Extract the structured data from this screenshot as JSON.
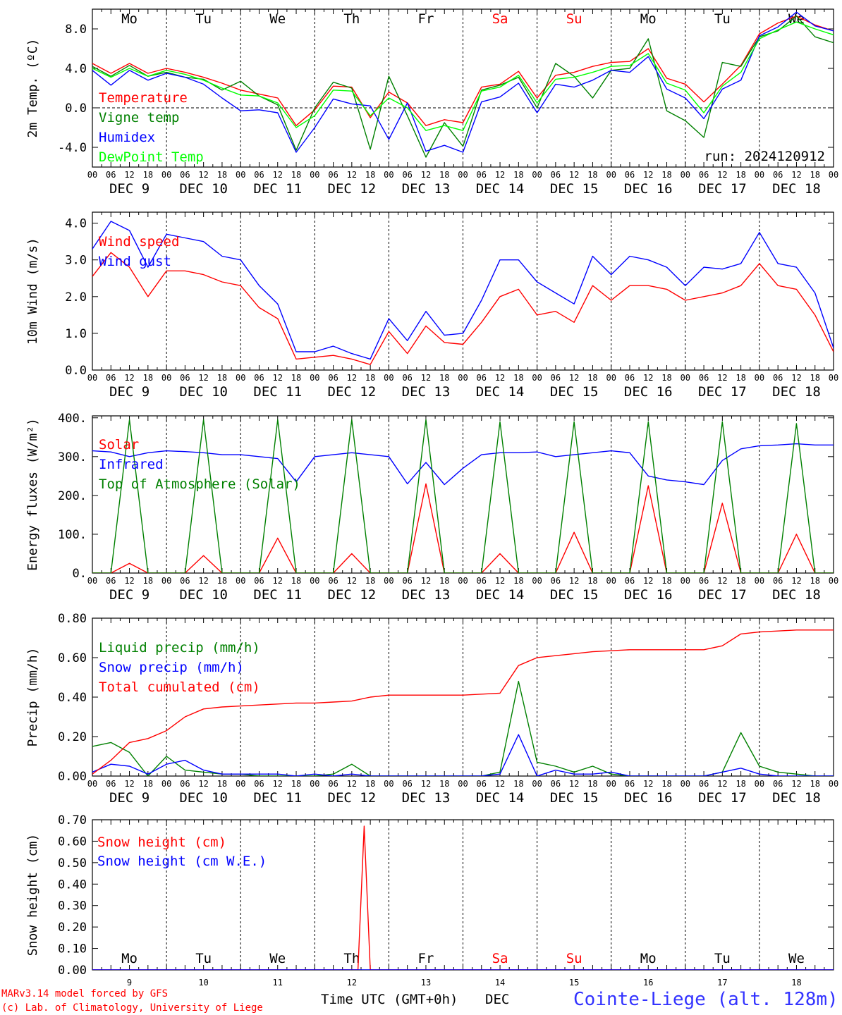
{
  "station": "Cointe-Liege (alt. 128m)",
  "footer": {
    "model": "MARv3.14 model forced by GFS",
    "copyright": "(c) Lab. of Climatology, University of Liege",
    "xlabel": "Time UTC (GMT+0h)",
    "month": "DEC"
  },
  "run": "run: 2024120912",
  "days": {
    "weekday": [
      "Mo",
      "Tu",
      "We",
      "Th",
      "Fr",
      "Sa",
      "Su",
      "Mo",
      "Tu",
      "We"
    ],
    "weekend_color": "#ff0000",
    "dates": [
      "DEC  9",
      "DEC 10",
      "DEC 11",
      "DEC 12",
      "DEC 13",
      "DEC 14",
      "DEC 15",
      "DEC 16",
      "DEC 17",
      "DEC 18"
    ],
    "numbers": [
      "9",
      "10",
      "11",
      "12",
      "13",
      "14",
      "15",
      "16",
      "17",
      "18"
    ],
    "hour_ticks": [
      "00",
      "06",
      "12",
      "18"
    ]
  },
  "chart_data": [
    {
      "type": "line",
      "ylabel": "2m Temp. (ºC)",
      "ylim": [
        -6,
        10
      ],
      "yticks": [
        "-4.0",
        "0.0",
        "4.0",
        "8.0"
      ],
      "x_hours": [
        0,
        6,
        12,
        18,
        24,
        30,
        36,
        42,
        48,
        54,
        60,
        66,
        72,
        78,
        84,
        90,
        96,
        102,
        108,
        114,
        120,
        126,
        132,
        138,
        144,
        150,
        156,
        162,
        168,
        174,
        180,
        186,
        192,
        198,
        204,
        210,
        216,
        222,
        228,
        234,
        240
      ],
      "series": [
        {
          "name": "Temperature",
          "color": "#ff0000",
          "values": [
            4.5,
            3.5,
            4.5,
            3.5,
            4.0,
            3.6,
            3.1,
            2.5,
            1.8,
            1.4,
            1.0,
            -1.8,
            -0.2,
            2.2,
            2.1,
            -1.0,
            1.6,
            0.5,
            -1.8,
            -1.2,
            -1.5,
            2.1,
            2.4,
            3.7,
            1.0,
            3.3,
            3.6,
            4.2,
            4.6,
            4.7,
            6.0,
            3.0,
            2.4,
            0.6,
            2.4,
            4.3,
            7.5,
            8.6,
            9.3,
            8.4,
            7.8
          ]
        },
        {
          "name": "Vigne temp",
          "color": "#008000",
          "values": [
            4.2,
            3.2,
            4.3,
            3.2,
            3.6,
            3.1,
            2.9,
            1.8,
            2.7,
            1.2,
            0.3,
            -4.3,
            0.0,
            2.6,
            2.0,
            -4.2,
            3.2,
            -0.8,
            -5.0,
            -1.5,
            -3.9,
            1.8,
            2.3,
            3.1,
            0.0,
            4.5,
            3.2,
            1.0,
            3.8,
            4.0,
            7.0,
            -0.3,
            -1.3,
            -3.0,
            4.6,
            4.2,
            7.2,
            7.8,
            9.3,
            7.2,
            6.6
          ]
        },
        {
          "name": "Humidex",
          "color": "#0000ff",
          "values": [
            3.8,
            2.3,
            3.8,
            2.8,
            3.5,
            3.1,
            2.4,
            1.0,
            -0.3,
            -0.2,
            -0.5,
            -4.5,
            -2.0,
            0.9,
            0.4,
            0.2,
            -3.2,
            0.5,
            -4.4,
            -3.8,
            -4.5,
            0.6,
            1.1,
            2.5,
            -0.5,
            2.4,
            2.1,
            2.8,
            3.8,
            3.6,
            5.2,
            1.9,
            1.0,
            -1.1,
            1.9,
            2.8,
            7.3,
            8.2,
            9.7,
            8.3,
            7.8
          ]
        },
        {
          "name": "DewPoint Temp",
          "color": "#00ff00",
          "values": [
            4.0,
            3.1,
            4.0,
            3.2,
            3.8,
            3.4,
            2.8,
            2.0,
            1.3,
            1.2,
            0.5,
            -2.0,
            -0.8,
            1.8,
            1.7,
            -0.8,
            1.0,
            0.0,
            -2.3,
            -1.8,
            -2.3,
            1.7,
            2.1,
            3.3,
            0.5,
            2.9,
            3.1,
            3.6,
            4.2,
            4.3,
            5.5,
            2.5,
            1.8,
            -0.5,
            2.2,
            3.6,
            7.0,
            7.9,
            8.7,
            8.0,
            7.4
          ]
        }
      ]
    },
    {
      "type": "line",
      "ylabel": "10m Wind (m/s)",
      "ylim": [
        0,
        4.3
      ],
      "yticks": [
        "0.0",
        "1.0",
        "2.0",
        "3.0",
        "4.0"
      ],
      "x_hours": [
        0,
        6,
        12,
        18,
        24,
        30,
        36,
        42,
        48,
        54,
        60,
        66,
        72,
        78,
        84,
        90,
        96,
        102,
        108,
        114,
        120,
        126,
        132,
        138,
        144,
        150,
        156,
        162,
        168,
        174,
        180,
        186,
        192,
        198,
        204,
        210,
        216,
        222,
        228,
        234,
        240
      ],
      "series": [
        {
          "name": "Wind speed",
          "color": "#ff0000",
          "values": [
            2.55,
            3.2,
            2.8,
            2.0,
            2.7,
            2.7,
            2.6,
            2.4,
            2.3,
            1.7,
            1.4,
            0.3,
            0.35,
            0.4,
            0.3,
            0.15,
            1.05,
            0.45,
            1.2,
            0.75,
            0.7,
            1.3,
            2.0,
            2.2,
            1.5,
            1.6,
            1.3,
            2.3,
            1.9,
            2.3,
            2.3,
            2.2,
            1.9,
            2.0,
            2.1,
            2.3,
            2.9,
            2.3,
            2.2,
            1.5,
            0.5
          ]
        },
        {
          "name": "Wind gust",
          "color": "#0000ff",
          "values": [
            3.3,
            4.05,
            3.8,
            2.8,
            3.7,
            3.6,
            3.5,
            3.1,
            3.0,
            2.3,
            1.8,
            0.5,
            0.5,
            0.65,
            0.45,
            0.3,
            1.4,
            0.8,
            1.6,
            0.95,
            1.0,
            1.9,
            3.0,
            3.0,
            2.4,
            2.1,
            1.8,
            3.1,
            2.6,
            3.1,
            3.0,
            2.8,
            2.3,
            2.8,
            2.75,
            2.9,
            3.75,
            2.9,
            2.8,
            2.1,
            0.6
          ]
        }
      ]
    },
    {
      "type": "line",
      "ylabel": "Energy fluxes (W/m²)",
      "ylim": [
        0,
        405
      ],
      "yticks": [
        "0.",
        "100.",
        "200.",
        "300.",
        "400."
      ],
      "x_hours": [
        0,
        6,
        12,
        18,
        24,
        30,
        36,
        42,
        48,
        54,
        60,
        66,
        72,
        78,
        84,
        90,
        96,
        102,
        108,
        114,
        120,
        126,
        132,
        138,
        144,
        150,
        156,
        162,
        168,
        174,
        180,
        186,
        192,
        198,
        204,
        210,
        216,
        222,
        228,
        234,
        240
      ],
      "series": [
        {
          "name": "Solar",
          "color": "#ff0000",
          "values": [
            0,
            0,
            25,
            0,
            0,
            0,
            45,
            0,
            0,
            0,
            90,
            0,
            0,
            0,
            50,
            0,
            0,
            0,
            230,
            0,
            0,
            0,
            50,
            0,
            0,
            0,
            105,
            0,
            0,
            0,
            225,
            0,
            0,
            0,
            180,
            0,
            0,
            0,
            100,
            0,
            0
          ]
        },
        {
          "name": "Infrared",
          "color": "#0000ff",
          "values": [
            315,
            312,
            300,
            310,
            315,
            313,
            310,
            305,
            305,
            300,
            295,
            235,
            300,
            305,
            310,
            305,
            300,
            230,
            285,
            228,
            270,
            305,
            310,
            310,
            312,
            300,
            305,
            310,
            315,
            310,
            250,
            240,
            235,
            228,
            290,
            320,
            328,
            330,
            333,
            330,
            330
          ]
        },
        {
          "name": "Top of Atmosphere (Solar)",
          "color": "#008000",
          "values": [
            0,
            0,
            395,
            0,
            0,
            0,
            395,
            0,
            0,
            0,
            395,
            0,
            0,
            0,
            395,
            0,
            0,
            0,
            395,
            0,
            0,
            0,
            390,
            0,
            0,
            0,
            390,
            0,
            0,
            0,
            390,
            0,
            0,
            0,
            390,
            0,
            0,
            0,
            385,
            0,
            0
          ]
        }
      ]
    },
    {
      "type": "line",
      "ylabel": "Precip (mm/h)",
      "ylim": [
        0,
        0.8
      ],
      "yticks": [
        "0.00",
        "0.20",
        "0.40",
        "0.60",
        "0.80"
      ],
      "x_hours": [
        0,
        6,
        12,
        18,
        24,
        30,
        36,
        42,
        48,
        54,
        60,
        66,
        72,
        78,
        84,
        90,
        96,
        102,
        108,
        114,
        120,
        126,
        132,
        138,
        144,
        150,
        156,
        162,
        168,
        174,
        180,
        186,
        192,
        198,
        204,
        210,
        216,
        222,
        228,
        234,
        240
      ],
      "series": [
        {
          "name": "Liquid precip (mm/h)",
          "color": "#008000",
          "values": [
            0.15,
            0.17,
            0.12,
            0.0,
            0.1,
            0.03,
            0.02,
            0.01,
            0.01,
            0.0,
            0.0,
            0.0,
            0.0,
            0.01,
            0.06,
            0.0,
            0.0,
            0.0,
            0.0,
            0.0,
            0.0,
            0.0,
            0.02,
            0.48,
            0.07,
            0.05,
            0.02,
            0.05,
            0.01,
            0.0,
            0.0,
            0.0,
            0.0,
            0.0,
            0.02,
            0.22,
            0.05,
            0.02,
            0.01,
            0.0,
            0.0
          ]
        },
        {
          "name": "Snow precip (mm/h)",
          "color": "#0000ff",
          "values": [
            0.02,
            0.06,
            0.05,
            0.01,
            0.06,
            0.08,
            0.03,
            0.01,
            0.01,
            0.01,
            0.01,
            0.0,
            0.01,
            0.0,
            0.01,
            0.0,
            0.0,
            0.0,
            0.0,
            0.0,
            0.0,
            0.0,
            0.01,
            0.21,
            0.0,
            0.03,
            0.01,
            0.01,
            0.02,
            0.0,
            0.0,
            0.0,
            0.0,
            0.0,
            0.02,
            0.04,
            0.01,
            0.0,
            0.0,
            0.0,
            0.0
          ]
        },
        {
          "name": "Total cumulated (cm)",
          "color": "#ff0000",
          "values": [
            0.01,
            0.08,
            0.17,
            0.19,
            0.23,
            0.3,
            0.34,
            0.35,
            0.355,
            0.36,
            0.365,
            0.37,
            0.37,
            0.375,
            0.38,
            0.4,
            0.41,
            0.41,
            0.41,
            0.41,
            0.41,
            0.415,
            0.42,
            0.56,
            0.6,
            0.61,
            0.62,
            0.63,
            0.635,
            0.64,
            0.64,
            0.64,
            0.64,
            0.64,
            0.66,
            0.72,
            0.73,
            0.735,
            0.74,
            0.74,
            0.74
          ]
        }
      ]
    },
    {
      "type": "line",
      "ylabel": "Snow height (cm)",
      "ylim": [
        0,
        0.7
      ],
      "yticks": [
        "0.00",
        "0.10",
        "0.20",
        "0.30",
        "0.40",
        "0.50",
        "0.60",
        "0.70"
      ],
      "x_hours": [
        0,
        86,
        88,
        90,
        240
      ],
      "series": [
        {
          "name": "Snow height (cm)",
          "color": "#ff0000",
          "values": [
            0,
            0,
            0.67,
            0,
            0
          ]
        },
        {
          "name": "Snow height (cm W.E.)",
          "color": "#0000ff",
          "values": [
            0,
            0,
            0,
            0,
            0
          ]
        }
      ]
    }
  ]
}
